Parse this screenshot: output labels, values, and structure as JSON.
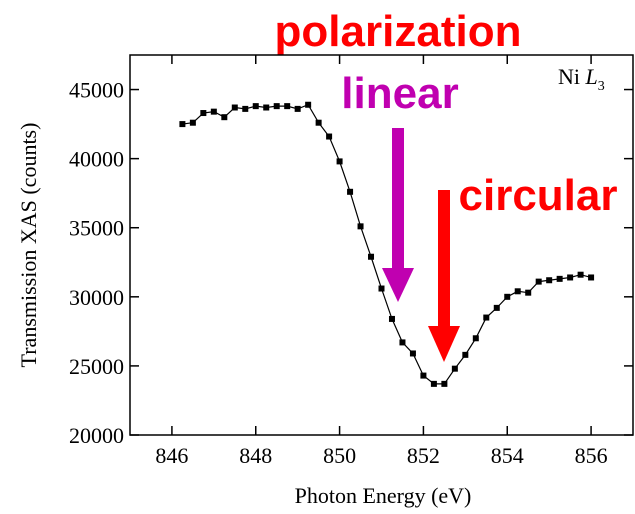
{
  "chart_data": {
    "type": "line",
    "x_label": "Photon Energy (eV)",
    "y_label": "Transmission XAS (counts)",
    "annotations": {
      "title": "polarization",
      "linear": "linear",
      "circular": "circular"
    },
    "inset_label": {
      "element": "Ni",
      "edge": "L",
      "sub": "3"
    },
    "x": [
      846.25,
      846.5,
      846.75,
      847,
      847.25,
      847.5,
      847.75,
      848,
      848.25,
      848.5,
      848.75,
      849,
      849.25,
      849.5,
      849.75,
      850,
      850.25,
      850.5,
      850.75,
      851,
      851.25,
      851.5,
      851.75,
      852,
      852.25,
      852.5,
      852.75,
      853,
      853.25,
      853.5,
      853.75,
      854,
      854.25,
      854.5,
      854.75,
      855,
      855.25,
      855.5,
      855.75,
      856
    ],
    "series": [
      {
        "color": "#000000",
        "values": [
          42500,
          42600,
          43300,
          43400,
          43000,
          43700,
          43600,
          43800,
          43700,
          43800,
          43800,
          43600,
          43900,
          42600,
          41600,
          39800,
          37600,
          35100,
          32900,
          30600,
          28400,
          26700,
          25900,
          24300,
          23700,
          23700,
          24800,
          25800,
          27000,
          28500,
          29200,
          30000,
          30400,
          30300,
          31100,
          31200,
          31300,
          31400,
          31600,
          31400
        ]
      }
    ],
    "xlim": [
      845,
      857
    ],
    "xticks": [
      846,
      848,
      850,
      852,
      854,
      856
    ],
    "ylim": [
      20000,
      47500
    ],
    "yticks": [
      20000,
      25000,
      30000,
      35000,
      40000,
      45000
    ]
  }
}
